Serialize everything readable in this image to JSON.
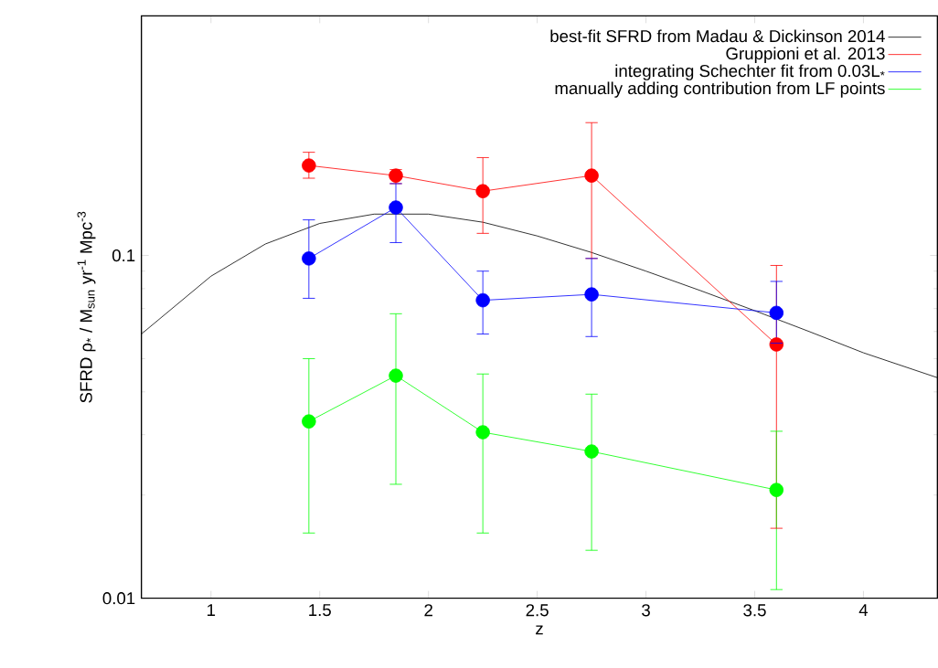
{
  "chart_data": {
    "type": "line",
    "xlabel": "z",
    "ylabel": "SFRD ρ$_{*}$ / M$_{sun}$ yr$^{-1}$ Mpc$^{-3}$",
    "log": "y",
    "marker": "circle",
    "legend": "top right",
    "xlim": [
      0.68,
      4.34
    ],
    "ylim": [
      0.01,
      0.5
    ],
    "xticks": [
      1,
      1.5,
      2,
      2.5,
      3,
      3.5,
      4
    ],
    "yticks": [
      0.01,
      0.1
    ],
    "series": [
      {
        "name": "best-fit SFRD from Madau & Dickinson 2014",
        "color": "#000000",
        "marker": "none",
        "x": [
          0.68,
          1,
          1.25,
          1.5,
          1.75,
          2,
          2.25,
          2.5,
          2.75,
          3,
          3.25,
          3.5,
          3.75,
          4,
          4.34
        ],
        "values": [
          0.059,
          0.087,
          0.108,
          0.124,
          0.132,
          0.132,
          0.125,
          0.114,
          0.102,
          0.09,
          0.079,
          0.069,
          0.06,
          0.052,
          0.044
        ]
      },
      {
        "name": "Gruppioni et al. 2013",
        "color": "#ff0000",
        "x": [
          1.45,
          1.85,
          2.25,
          2.75,
          3.6
        ],
        "values": [
          0.183,
          0.171,
          0.154,
          0.171,
          0.055
        ],
        "errors": [
          [
            0.168,
            0.2
          ],
          [
            0.162,
            0.178
          ],
          [
            0.116,
            0.193
          ],
          [
            0.098,
            0.244
          ],
          [
            0.016,
            0.0935
          ]
        ]
      },
      {
        "name": "integrating Schechter fit from 0.03L$_{*}$",
        "color": "#0000ff",
        "x": [
          1.45,
          1.85,
          2.25,
          2.75,
          3.6
        ],
        "values": [
          0.098,
          0.138,
          0.074,
          0.077,
          0.068
        ],
        "errors": [
          [
            0.075,
            0.127
          ],
          [
            0.109,
            0.162
          ],
          [
            0.059,
            0.09
          ],
          [
            0.058,
            0.098
          ],
          [
            0.0555,
            0.084
          ]
        ]
      },
      {
        "name": "manually adding contribution from LF points",
        "color": "#00ff00",
        "x": [
          1.45,
          1.85,
          2.25,
          2.75,
          3.6
        ],
        "values": [
          0.0328,
          0.0446,
          0.0305,
          0.0268,
          0.0207
        ],
        "errors": [
          [
            0.0155,
            0.05
          ],
          [
            0.0215,
            0.0676
          ],
          [
            0.0155,
            0.0451
          ],
          [
            0.0138,
            0.0394
          ],
          [
            0.0106,
            0.0307
          ]
        ]
      }
    ]
  }
}
